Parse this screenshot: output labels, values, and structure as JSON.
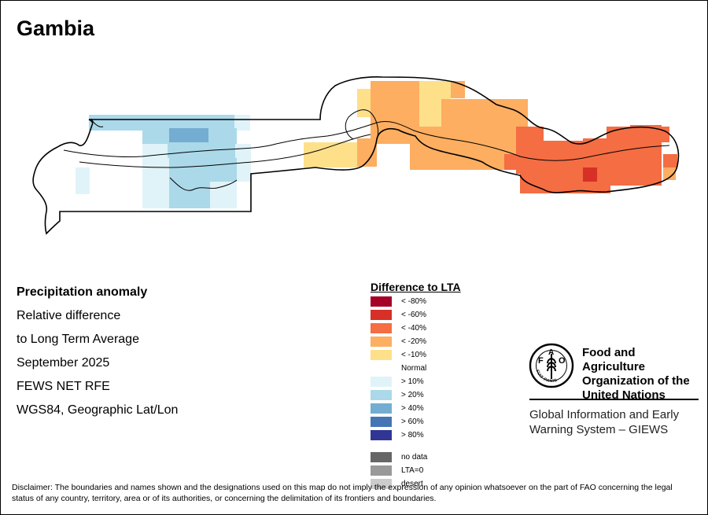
{
  "map": {
    "title": "Gambia",
    "info_lines": [
      "Precipitation anomaly",
      "Relative difference",
      "to Long Term Average",
      "September 2025",
      "FEWS NET RFE",
      "WGS84, Geographic Lat/Lon"
    ],
    "category_colors": {
      "lt_minus_40": "#f46d43",
      "lt_minus_20": "#fdae61",
      "lt_minus_10": "#fee08b",
      "gt_10": "#e0f3f8",
      "gt_20": "#abd9e9",
      "gt_40": "#74add1",
      "lt_minus_60": "#d73027"
    }
  },
  "legend": {
    "title": "Difference to LTA",
    "items": [
      {
        "label": "< -80%",
        "color": "#a50026"
      },
      {
        "label": "< -60%",
        "color": "#d73027"
      },
      {
        "label": "< -40%",
        "color": "#f46d43"
      },
      {
        "label": "< -20%",
        "color": "#fdae61"
      },
      {
        "label": "< -10%",
        "color": "#fee08b"
      },
      {
        "label": "Normal",
        "color": "#ffffff"
      },
      {
        "label": "> 10%",
        "color": "#e0f3f8"
      },
      {
        "label": "> 20%",
        "color": "#abd9e9"
      },
      {
        "label": "> 40%",
        "color": "#74add1"
      },
      {
        "label": "> 60%",
        "color": "#4575b4"
      },
      {
        "label": "> 80%",
        "color": "#313695"
      },
      {
        "label": "no data",
        "color": "#666666"
      },
      {
        "label": "LTA=0",
        "color": "#999999"
      },
      {
        "label": "desert",
        "color": "#cccccc"
      }
    ]
  },
  "logo": {
    "fao_name": "Food and Agriculture Organization of the United Nations",
    "emblem_text": "FIAT PANIS",
    "giews_name": "Global Information and Early Warning System – GIEWS"
  },
  "disclaimer": "Disclaimer: The boundaries and names shown and the designations used on this map do not imply the expression of any opinion whatsoever on the part of FAO concerning the legal status of any country, territory, area or of its authorities, or concerning the delimitation of its frontiers and boundaries."
}
